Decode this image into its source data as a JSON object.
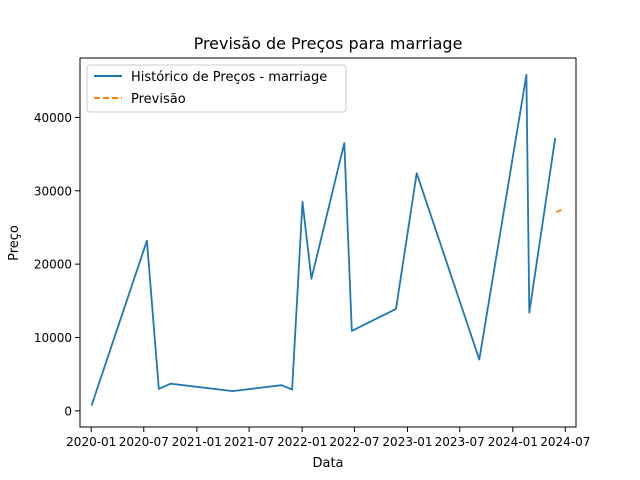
{
  "chart_data": {
    "type": "line",
    "title": "Previsão de Preços para marriage",
    "xlabel": "Data",
    "ylabel": "Preço",
    "x_ticks": [
      "2020-01",
      "2020-07",
      "2021-01",
      "2021-07",
      "2022-01",
      "2022-07",
      "2023-01",
      "2023-07",
      "2024-01",
      "2024-07"
    ],
    "y_ticks": [
      0,
      10000,
      20000,
      30000,
      40000
    ],
    "xlim": [
      "2019-11-23",
      "2024-08-07"
    ],
    "ylim": [
      -2200,
      48100
    ],
    "grid": false,
    "legend_position": "upper-left",
    "series": [
      {
        "name": "Histórico de Preços - marriage",
        "color": "#1f77b4",
        "style": "solid",
        "points": [
          {
            "x": "2020-01-02",
            "y": 700
          },
          {
            "x": "2020-07-12",
            "y": 23200
          },
          {
            "x": "2020-08-22",
            "y": 3000
          },
          {
            "x": "2020-10-02",
            "y": 3700
          },
          {
            "x": "2021-05-05",
            "y": 2700
          },
          {
            "x": "2021-10-22",
            "y": 3500
          },
          {
            "x": "2021-11-27",
            "y": 2900
          },
          {
            "x": "2022-01-02",
            "y": 28500
          },
          {
            "x": "2022-02-02",
            "y": 18000
          },
          {
            "x": "2022-05-27",
            "y": 36500
          },
          {
            "x": "2022-06-22",
            "y": 10900
          },
          {
            "x": "2022-11-22",
            "y": 13900
          },
          {
            "x": "2023-02-02",
            "y": 32400
          },
          {
            "x": "2023-09-07",
            "y": 7000
          },
          {
            "x": "2024-02-17",
            "y": 45800
          },
          {
            "x": "2024-02-27",
            "y": 13400
          },
          {
            "x": "2024-05-27",
            "y": 37200
          }
        ]
      },
      {
        "name": "Previsão",
        "color": "#ff7f0e",
        "style": "dashed",
        "points": [
          {
            "x": "2024-05-30",
            "y": 27100
          },
          {
            "x": "2024-06-12",
            "y": 27300
          },
          {
            "x": "2024-06-27",
            "y": 27500
          }
        ]
      }
    ]
  }
}
